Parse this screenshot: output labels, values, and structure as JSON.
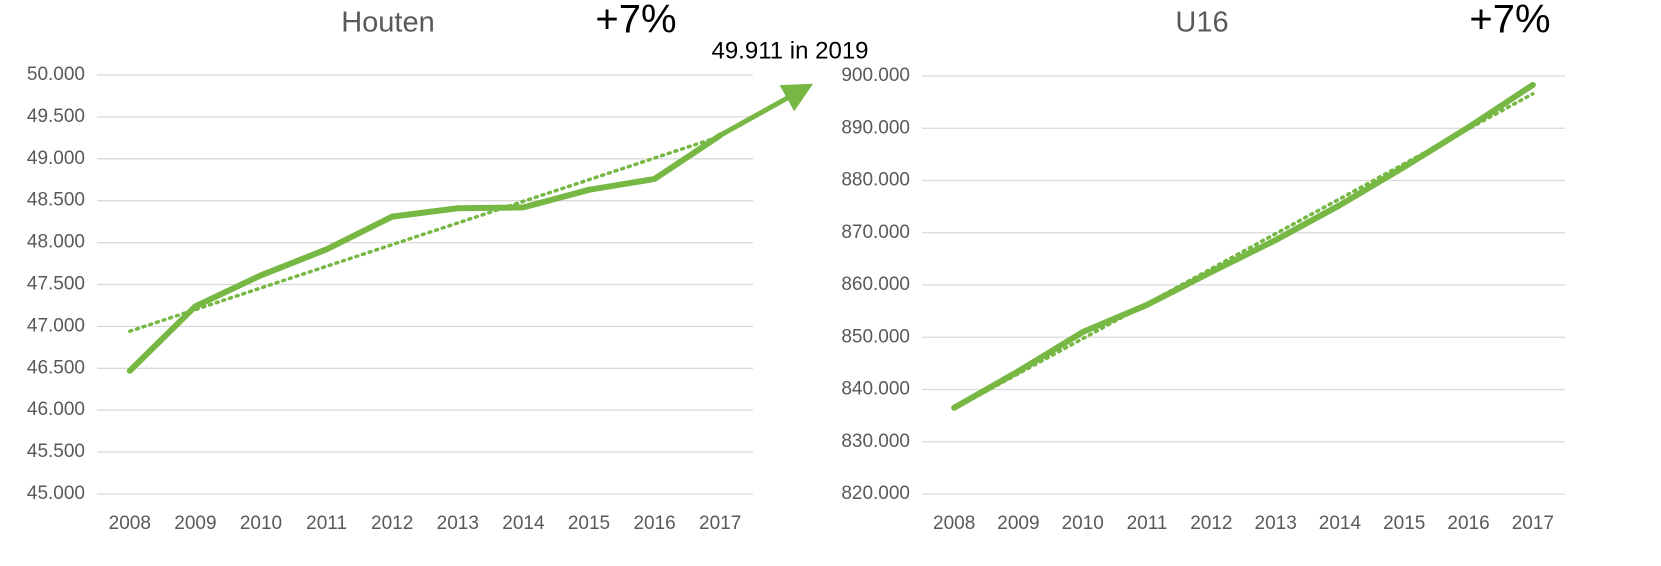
{
  "chart_data": [
    {
      "type": "line",
      "title": "Houten",
      "annotation": "+7%",
      "note": "49.911 in 2019",
      "categories": [
        "2008",
        "2009",
        "2010",
        "2011",
        "2012",
        "2013",
        "2014",
        "2015",
        "2016",
        "2017"
      ],
      "series": [
        {
          "color": "#76b843",
          "values": [
            46470,
            47240,
            47610,
            47920,
            48310,
            48410,
            48420,
            48630,
            48760,
            49280
          ]
        }
      ],
      "trendline": true,
      "grid": true,
      "ylim": [
        45000,
        50000
      ],
      "yticks": [
        {
          "value": 45000,
          "label": "45.000"
        },
        {
          "value": 45500,
          "label": "45.500"
        },
        {
          "value": 46000,
          "label": "46.000"
        },
        {
          "value": 46500,
          "label": "46.500"
        },
        {
          "value": 47000,
          "label": "47.000"
        },
        {
          "value": 47500,
          "label": "47.500"
        },
        {
          "value": 48000,
          "label": "48.000"
        },
        {
          "value": 48500,
          "label": "48.500"
        },
        {
          "value": 49000,
          "label": "49.000"
        },
        {
          "value": 49500,
          "label": "49.500"
        },
        {
          "value": 50000,
          "label": "50.000"
        }
      ]
    },
    {
      "type": "line",
      "title": "U16",
      "annotation": "+7%",
      "categories": [
        "2008",
        "2009",
        "2010",
        "2011",
        "2012",
        "2013",
        "2014",
        "2015",
        "2016",
        "2017"
      ],
      "series": [
        {
          "color": "#76b843",
          "values": [
            836500,
            843500,
            851000,
            856200,
            862500,
            868600,
            875300,
            882600,
            890200,
            898300
          ]
        }
      ],
      "trendline": true,
      "grid": true,
      "ylim": [
        820000,
        900000
      ],
      "yticks": [
        {
          "value": 820000,
          "label": "820.000"
        },
        {
          "value": 830000,
          "label": "830.000"
        },
        {
          "value": 840000,
          "label": "840.000"
        },
        {
          "value": 850000,
          "label": "850.000"
        },
        {
          "value": 860000,
          "label": "860.000"
        },
        {
          "value": 870000,
          "label": "870.000"
        },
        {
          "value": 880000,
          "label": "880.000"
        },
        {
          "value": 890000,
          "label": "890.000"
        },
        {
          "value": 900000,
          "label": "900.000"
        }
      ]
    }
  ]
}
